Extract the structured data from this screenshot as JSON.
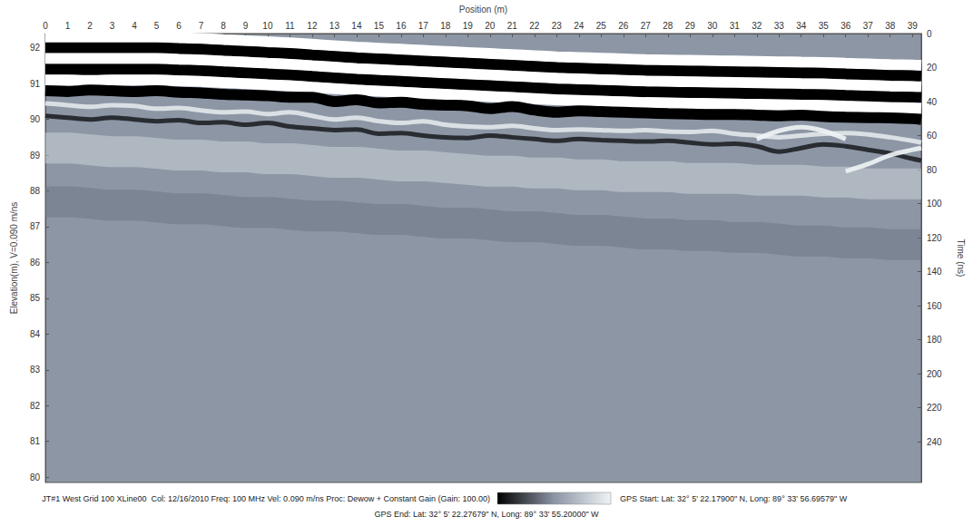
{
  "chart_data": {
    "type": "line",
    "x_label": "Position (m)",
    "y_label": "Elevation(m), V=0.090 m/ns",
    "y2_label": "Time (ns)",
    "annotations": [
      "JT#1 West Grid 100 XLine00  Col: 12/16/2010 Freq: 100 MHz Vel: 0.090 m/ns Proc: Dewow + Constant Gain (Gain: 100.00)",
      "GPS Start: Lat: 32° 5' 22.17900\" N, Long: 89° 33' 56.69579\" W",
      "GPS End: Lat: 32° 5' 22.27679\" N, Long: 89° 33' 55.20000\" W"
    ],
    "grid": false,
    "x": [
      0,
      1,
      2,
      3,
      4,
      5,
      6,
      7,
      8,
      9,
      10,
      11,
      12,
      13,
      14,
      15,
      16,
      17,
      18,
      19,
      20,
      21,
      22,
      23,
      24,
      25,
      26,
      27,
      28,
      29,
      30,
      31,
      32,
      33,
      34,
      35,
      36,
      37,
      38,
      39,
      39.4
    ],
    "xlim": [
      0,
      39.4
    ],
    "xticks": [
      0,
      1,
      2,
      3,
      4,
      5,
      6,
      7,
      8,
      9,
      10,
      11,
      12,
      13,
      14,
      15,
      16,
      17,
      18,
      19,
      20,
      21,
      22,
      23,
      24,
      25,
      26,
      27,
      28,
      29,
      30,
      31,
      32,
      33,
      34,
      35,
      36,
      37,
      38,
      39
    ],
    "ylim": [
      79.85,
      92.4
    ],
    "yticks": [
      80,
      81,
      82,
      83,
      84,
      85,
      86,
      87,
      88,
      89,
      90,
      91,
      92
    ],
    "y2lim": [
      264,
      0
    ],
    "y2ticks": [
      0,
      20,
      40,
      60,
      80,
      100,
      120,
      140,
      160,
      180,
      200,
      220,
      240
    ],
    "series": [
      {
        "color": "#6b7383",
        "line_style": "broad",
        "values": [
          87.7,
          87.7,
          87.65,
          87.6,
          87.6,
          87.55,
          87.5,
          87.5,
          87.45,
          87.4,
          87.4,
          87.35,
          87.3,
          87.3,
          87.25,
          87.2,
          87.2,
          87.15,
          87.1,
          87.1,
          87.05,
          87.0,
          87.0,
          86.95,
          86.9,
          86.9,
          86.85,
          86.8,
          86.8,
          86.75,
          86.75,
          86.7,
          86.7,
          86.65,
          86.6,
          86.6,
          86.55,
          86.55,
          86.5,
          86.5,
          86.5
        ]
      },
      {
        "color": "#d2dade",
        "line_style": "broad",
        "values": [
          89.2,
          89.2,
          89.15,
          89.1,
          89.1,
          89.05,
          89.0,
          89.0,
          88.95,
          88.95,
          88.9,
          88.9,
          88.85,
          88.8,
          88.8,
          88.75,
          88.7,
          88.7,
          88.65,
          88.6,
          88.55,
          88.55,
          88.5,
          88.5,
          88.45,
          88.45,
          88.4,
          88.4,
          88.4,
          88.35,
          88.35,
          88.35,
          88.3,
          88.3,
          88.3,
          88.25,
          88.25,
          88.2,
          88.2,
          88.2,
          88.2
        ]
      },
      {
        "color": "#e2e8ea",
        "line_style": "thin",
        "values": [
          90.45,
          90.4,
          90.35,
          90.4,
          90.38,
          90.3,
          90.32,
          90.25,
          90.2,
          90.22,
          90.15,
          90.2,
          90.1,
          90.0,
          90.05,
          89.95,
          89.9,
          89.95,
          89.85,
          89.8,
          89.78,
          89.82,
          89.75,
          89.7,
          89.72,
          89.7,
          89.68,
          89.7,
          89.66,
          89.65,
          89.68,
          89.6,
          89.55,
          89.5,
          89.55,
          89.6,
          89.62,
          89.58,
          89.5,
          89.4,
          89.35
        ]
      },
      {
        "color": "#1e2126",
        "line_style": "thin",
        "values": [
          90.1,
          90.05,
          90.0,
          90.05,
          90.0,
          89.95,
          89.98,
          89.9,
          89.92,
          89.85,
          89.9,
          89.8,
          89.75,
          89.7,
          89.72,
          89.6,
          89.62,
          89.55,
          89.5,
          89.48,
          89.55,
          89.5,
          89.45,
          89.4,
          89.45,
          89.42,
          89.4,
          89.38,
          89.4,
          89.35,
          89.3,
          89.32,
          89.25,
          89.1,
          89.2,
          89.3,
          89.25,
          89.15,
          89.05,
          88.9,
          88.85
        ]
      },
      {
        "color": "#f0f4f5",
        "line_style": "thin",
        "values": [
          null,
          null,
          null,
          null,
          null,
          null,
          null,
          null,
          null,
          null,
          null,
          null,
          null,
          null,
          null,
          null,
          null,
          null,
          null,
          null,
          null,
          null,
          null,
          null,
          null,
          null,
          null,
          null,
          null,
          null,
          null,
          null,
          89.45,
          89.68,
          89.78,
          89.68,
          89.45,
          null,
          null,
          null,
          null
        ]
      },
      {
        "color": "#f0f4f5",
        "line_style": "thin",
        "values": [
          null,
          null,
          null,
          null,
          null,
          null,
          null,
          null,
          null,
          null,
          null,
          null,
          null,
          null,
          null,
          null,
          null,
          null,
          null,
          null,
          null,
          null,
          null,
          null,
          null,
          null,
          null,
          null,
          null,
          null,
          null,
          null,
          null,
          null,
          null,
          null,
          88.55,
          88.75,
          89.0,
          89.15,
          89.2
        ]
      },
      {
        "color": "#ffffff",
        "line_style": "solid",
        "values": [
          92.3,
          92.3,
          92.3,
          92.3,
          92.3,
          92.3,
          92.28,
          92.26,
          92.23,
          92.2,
          92.17,
          92.14,
          92.1,
          92.06,
          92.02,
          91.99,
          91.96,
          91.93,
          91.9,
          91.87,
          91.84,
          91.81,
          91.78,
          91.75,
          91.73,
          91.71,
          91.69,
          91.67,
          91.66,
          91.65,
          91.64,
          91.63,
          91.62,
          91.61,
          91.6,
          91.59,
          91.57,
          91.55,
          91.53,
          91.52,
          91.51
        ]
      },
      {
        "color": "#000000",
        "line_style": "solid",
        "values": [
          92.0,
          92.0,
          92.0,
          92.0,
          92.0,
          92.0,
          91.98,
          91.96,
          91.93,
          91.9,
          91.87,
          91.84,
          91.8,
          91.76,
          91.72,
          91.69,
          91.66,
          91.63,
          91.6,
          91.57,
          91.54,
          91.51,
          91.48,
          91.45,
          91.43,
          91.41,
          91.39,
          91.37,
          91.36,
          91.35,
          91.34,
          91.33,
          91.32,
          91.31,
          91.3,
          91.29,
          91.27,
          91.25,
          91.23,
          91.22,
          91.21
        ]
      },
      {
        "color": "#ffffff",
        "line_style": "solid",
        "values": [
          91.7,
          91.7,
          91.7,
          91.7,
          91.7,
          91.7,
          91.68,
          91.66,
          91.63,
          91.6,
          91.57,
          91.54,
          91.5,
          91.46,
          91.42,
          91.39,
          91.36,
          91.33,
          91.3,
          91.27,
          91.24,
          91.21,
          91.18,
          91.15,
          91.13,
          91.11,
          91.09,
          91.07,
          91.06,
          91.05,
          91.04,
          91.03,
          91.02,
          91.01,
          91.0,
          90.99,
          90.97,
          90.95,
          90.93,
          90.92,
          90.91
        ]
      },
      {
        "color": "#000000",
        "line_style": "solid",
        "values": [
          91.4,
          91.4,
          91.4,
          91.4,
          91.4,
          91.4,
          91.38,
          91.36,
          91.33,
          91.3,
          91.27,
          91.24,
          91.2,
          91.16,
          91.12,
          91.09,
          91.06,
          91.03,
          91.0,
          90.97,
          90.94,
          90.91,
          90.88,
          90.85,
          90.83,
          90.81,
          90.79,
          90.77,
          90.76,
          90.75,
          90.74,
          90.73,
          90.72,
          90.71,
          90.7,
          90.69,
          90.67,
          90.65,
          90.63,
          90.62,
          90.61
        ]
      },
      {
        "color": "#ffffff",
        "line_style": "solid",
        "values": [
          91.1,
          91.1,
          91.08,
          91.1,
          91.1,
          91.1,
          91.08,
          91.06,
          91.03,
          91.0,
          90.97,
          90.94,
          90.9,
          90.86,
          90.82,
          90.79,
          90.76,
          90.73,
          90.7,
          90.67,
          90.64,
          90.61,
          90.58,
          90.55,
          90.53,
          90.51,
          90.49,
          90.47,
          90.46,
          90.45,
          90.44,
          90.43,
          90.42,
          90.41,
          90.4,
          90.39,
          90.37,
          90.35,
          90.33,
          90.32,
          90.31
        ]
      },
      {
        "color": "#000000",
        "line_style": "solid",
        "values": [
          90.8,
          90.78,
          90.82,
          90.8,
          90.78,
          90.8,
          90.76,
          90.74,
          90.7,
          90.68,
          90.66,
          90.62,
          90.62,
          90.5,
          90.55,
          90.46,
          90.48,
          90.42,
          90.4,
          90.38,
          90.3,
          90.36,
          90.26,
          90.2,
          90.24,
          90.22,
          90.2,
          90.18,
          90.16,
          90.15,
          90.14,
          90.14,
          90.12,
          90.1,
          90.12,
          90.08,
          90.06,
          90.05,
          90.04,
          90.02,
          90.0
        ]
      }
    ]
  }
}
